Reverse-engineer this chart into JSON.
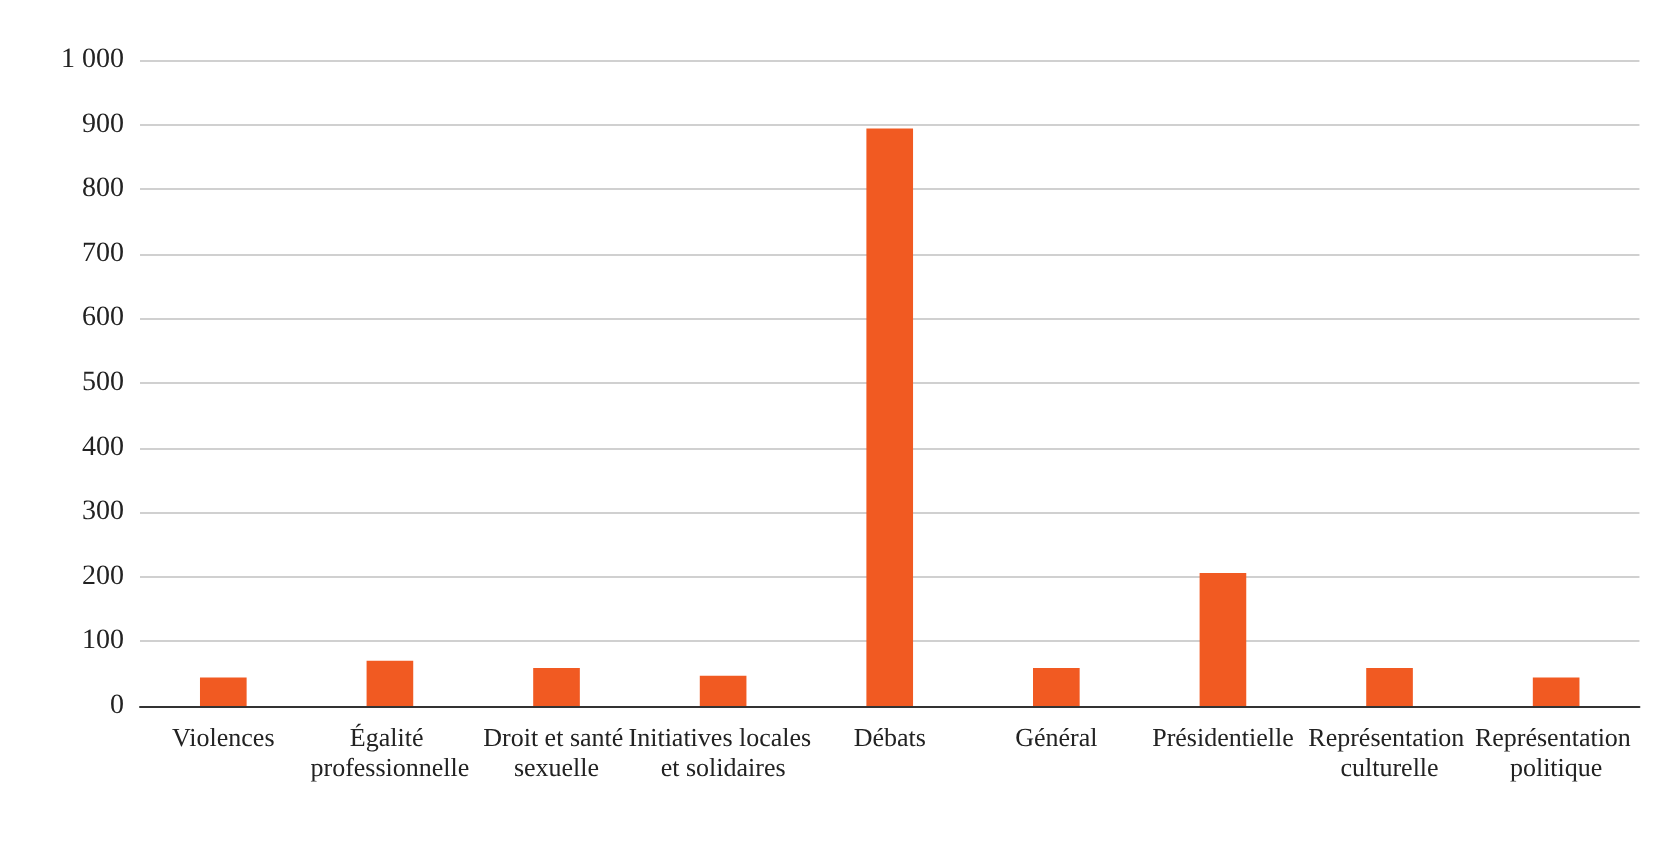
{
  "chart_data": {
    "type": "bar",
    "categories": [
      "Violences",
      "Égalité professionnelle",
      "Droit et santé sexuelle",
      "Initiatives locales et solidaires",
      "Débats",
      "Général",
      "Présidentielle",
      "Représentation culturelle",
      "Représentation politique"
    ],
    "values": [
      44,
      70,
      59,
      47,
      894,
      59,
      206,
      59,
      44
    ],
    "color": "#f15a22",
    "ylim": [
      0,
      1000
    ],
    "yticks": [
      0,
      100,
      200,
      300,
      400,
      500,
      600,
      700,
      800,
      900,
      {
        "value": 1000,
        "label": "1 000"
      }
    ],
    "grid": "y"
  }
}
